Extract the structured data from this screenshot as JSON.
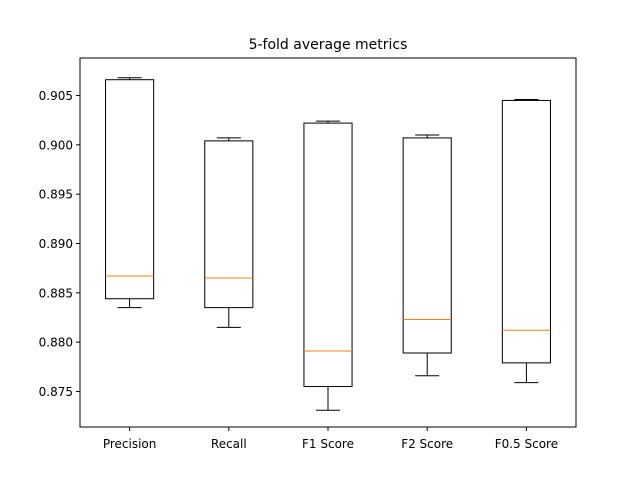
{
  "chart_data": {
    "type": "box",
    "title": "5-fold average metrics",
    "xlabel": "",
    "ylabel": "",
    "ylim": [
      0.8714,
      0.9088
    ],
    "yticks": [
      0.875,
      0.88,
      0.885,
      0.89,
      0.895,
      0.9,
      0.905
    ],
    "ytick_labels": [
      "0.875",
      "0.880",
      "0.885",
      "0.890",
      "0.895",
      "0.900",
      "0.905"
    ],
    "categories": [
      "Precision",
      "Recall",
      "F1 Score",
      "F2 Score",
      "F0.5 Score"
    ],
    "boxes": [
      {
        "label": "Precision",
        "whisker_low": 0.8835,
        "q1": 0.8844,
        "median": 0.8867,
        "q3": 0.9066,
        "whisker_high": 0.9068
      },
      {
        "label": "Recall",
        "whisker_low": 0.8815,
        "q1": 0.8835,
        "median": 0.8865,
        "q3": 0.9004,
        "whisker_high": 0.9007
      },
      {
        "label": "F1 Score",
        "whisker_low": 0.8731,
        "q1": 0.8755,
        "median": 0.8791,
        "q3": 0.9022,
        "whisker_high": 0.9024
      },
      {
        "label": "F2 Score",
        "whisker_low": 0.8766,
        "q1": 0.8789,
        "median": 0.8823,
        "q3": 0.9007,
        "whisker_high": 0.901
      },
      {
        "label": "F0.5 Score",
        "whisker_low": 0.8759,
        "q1": 0.8779,
        "median": 0.8812,
        "q3": 0.9045,
        "whisker_high": 0.9046
      }
    ],
    "colors": {
      "box": "#000000",
      "median": "#ff7f0e",
      "axes": "#000000"
    },
    "grid": false,
    "legend": "none"
  }
}
